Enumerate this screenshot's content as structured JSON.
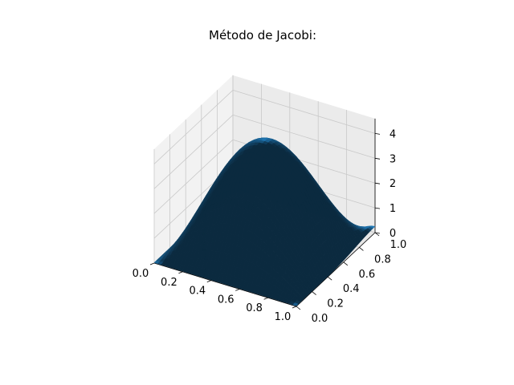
{
  "chart_data": {
    "type": "surface3d",
    "title": "Método de Jacobi:",
    "xlabel": "",
    "ylabel": "",
    "zlabel": "",
    "x_ticks": [
      "0.0",
      "0.2",
      "0.4",
      "0.6",
      "0.8",
      "1.0"
    ],
    "y_ticks": [
      "0.0",
      "0.2",
      "0.4",
      "0.6",
      "0.8",
      "1.0"
    ],
    "z_ticks": [
      "0",
      "1",
      "2",
      "3",
      "4"
    ],
    "xlim": [
      0,
      1
    ],
    "ylim": [
      0,
      1
    ],
    "zlim": [
      0,
      4.3
    ],
    "grid": true,
    "surface_color": "#1f77b4",
    "surface_model": "z ≈ 4.3·sin(πx)·sin(πy); near-zero along the boundary, with a small rise toward the corner x≈1, y≈1",
    "surface_peak": {
      "x": 0.5,
      "y": 0.5,
      "z": 4.25
    }
  }
}
